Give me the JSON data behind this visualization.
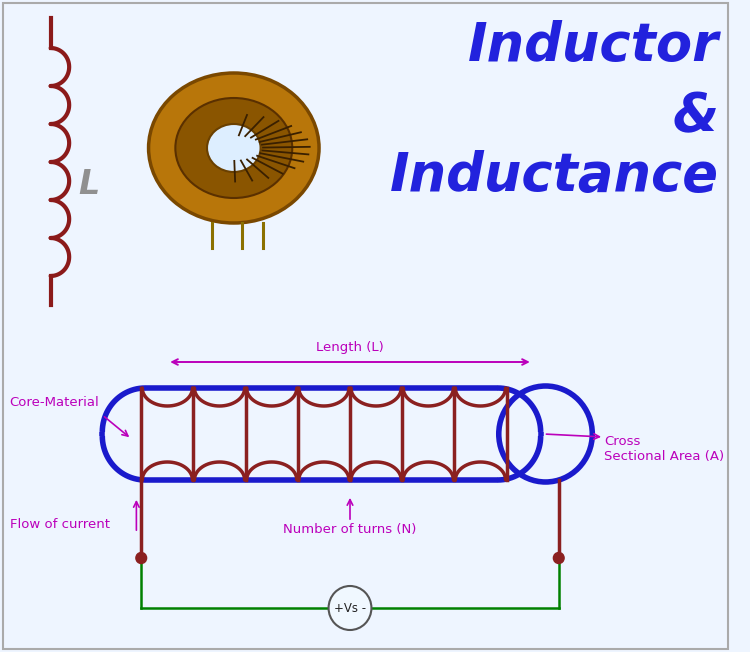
{
  "bg_color": "#eef5ff",
  "border_color": "#aaaaaa",
  "title_lines": [
    "Inductor",
    "&",
    "Inductance"
  ],
  "title_color": "#2222dd",
  "title_fontsize": 38,
  "sym_color": "#8b1a1a",
  "L_label_color": "#909090",
  "L_label_fontsize": 24,
  "coil_color": "#8b2020",
  "core_color": "#1a1acc",
  "ann_color": "#bb00bb",
  "length_label": "Length (L)",
  "core_material_label": "Core-Material",
  "cross_section_label": "Cross\nSectional Area (A)",
  "flow_label": "Flow of current",
  "turns_label": "Number of turns (N)",
  "vs_label": "+Vs -",
  "ann_fontsize": 9.5,
  "coil_lw": 2.5,
  "core_lw": 4.0,
  "sym_lw": 3.0
}
